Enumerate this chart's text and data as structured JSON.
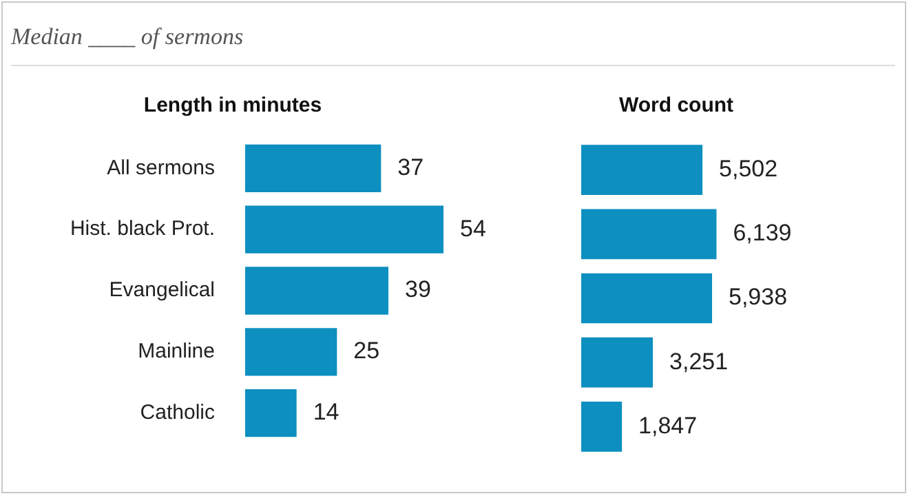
{
  "chart_data": [
    {
      "type": "bar",
      "orientation": "horizontal",
      "title": "Length in minutes",
      "annotations": [
        "Median ____ of sermons"
      ],
      "categories": [
        "All sermons",
        "Hist. black Prot.",
        "Evangelical",
        "Mainline",
        "Catholic"
      ],
      "values": [
        37,
        54,
        39,
        25,
        14
      ],
      "color": "#0d8fc0",
      "data_labels": true,
      "tick_labels": "y"
    },
    {
      "type": "bar",
      "orientation": "horizontal",
      "title": "Word count",
      "categories": [
        null,
        null,
        null,
        null,
        null
      ],
      "values": [
        5502,
        6139,
        5938,
        3251,
        1847
      ],
      "value_labels": [
        "5,502",
        "6,139",
        "5,938",
        "3,251",
        "1,847"
      ],
      "color": "#0d8fc0",
      "tick_labels": false
    }
  ]
}
